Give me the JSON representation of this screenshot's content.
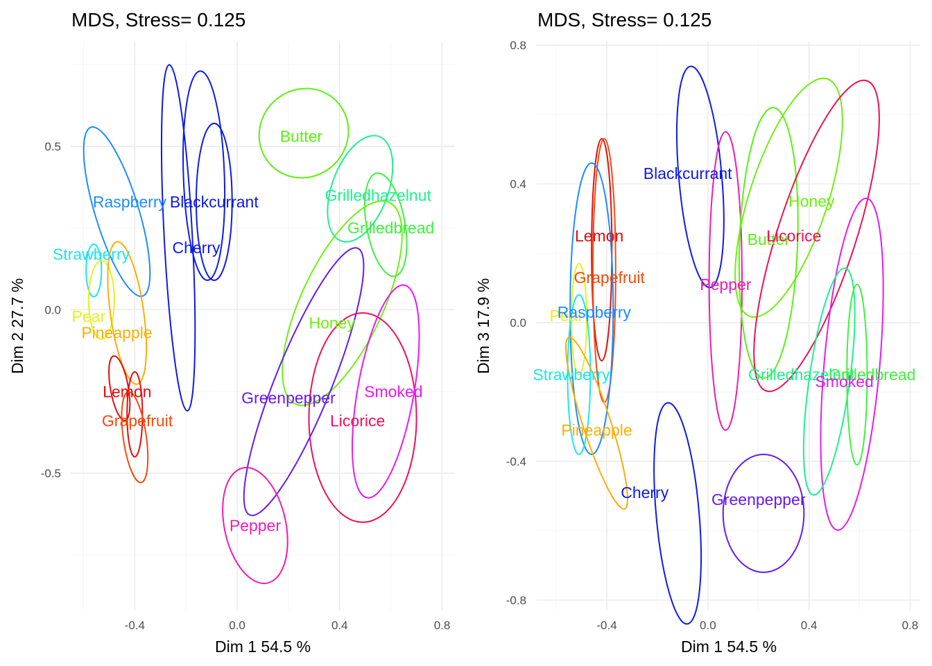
{
  "chart_data": [
    {
      "type": "scatter",
      "title": "MDS, Stress= 0.125",
      "xlabel": "Dim 1 54.5 %",
      "ylabel": "Dim 2 27.7 %",
      "xlim": [
        -0.65,
        0.85
      ],
      "ylim": [
        -0.92,
        0.82
      ],
      "xticks": [
        -0.4,
        0.0,
        0.4,
        0.8
      ],
      "xtick_labels": [
        "-0.4",
        "0.0",
        "0.4",
        "0.8"
      ],
      "yticks": [
        -0.5,
        0.0,
        0.5
      ],
      "ytick_labels": [
        "-0.5",
        "0.0",
        "0.5"
      ],
      "grid": true,
      "points": [
        {
          "label": "Raspberry",
          "x": -0.42,
          "y": 0.33,
          "color": "#1a8cff",
          "ellipse": {
            "cx": -0.47,
            "cy": 0.3,
            "rx": 0.085,
            "ry": 0.27,
            "angle": -17
          }
        },
        {
          "label": "Blackcurrant",
          "x": -0.09,
          "y": 0.33,
          "color": "#0d1ae6",
          "ellipse": {
            "cx": -0.13,
            "cy": 0.41,
            "rx": 0.08,
            "ry": 0.32,
            "angle": -2
          }
        },
        {
          "label": "Blackcurrant",
          "x": -0.09,
          "y": 0.33,
          "color": "#0d1ae6",
          "ellipse": {
            "cx": -0.09,
            "cy": 0.33,
            "rx": 0.07,
            "ry": 0.24,
            "angle": 0
          }
        },
        {
          "label": "Cherry",
          "x": -0.16,
          "y": 0.19,
          "color": "#0d1ae6",
          "ellipse": {
            "cx": -0.23,
            "cy": 0.22,
            "rx": 0.055,
            "ry": 0.53,
            "angle": -3
          }
        },
        {
          "label": "Strawberry",
          "x": -0.57,
          "y": 0.17,
          "color": "#19e6f2",
          "ellipse": {
            "cx": -0.56,
            "cy": 0.12,
            "rx": 0.03,
            "ry": 0.08,
            "angle": 0
          }
        },
        {
          "label": "Pear",
          "x": -0.58,
          "y": -0.02,
          "color": "#e6f21a",
          "ellipse": {
            "cx": -0.53,
            "cy": 0.03,
            "rx": 0.05,
            "ry": 0.12,
            "angle": 0
          }
        },
        {
          "label": "Pineapple",
          "x": -0.47,
          "y": -0.07,
          "color": "#ffad00",
          "ellipse": {
            "cx": -0.43,
            "cy": -0.01,
            "rx": 0.065,
            "ry": 0.22,
            "angle": -8
          }
        },
        {
          "label": "Lemon",
          "x": -0.43,
          "y": -0.25,
          "color": "#e60d0d",
          "ellipse": {
            "cx": -0.46,
            "cy": -0.24,
            "rx": 0.035,
            "ry": 0.1,
            "angle": -10
          }
        },
        {
          "label": "Lemon",
          "x": -0.43,
          "y": -0.25,
          "color": "#e60d0d",
          "ellipse": {
            "cx": -0.4,
            "cy": -0.32,
            "rx": 0.03,
            "ry": 0.13,
            "angle": 0
          }
        },
        {
          "label": "Grapefruit",
          "x": -0.39,
          "y": -0.34,
          "color": "#f24a0d",
          "ellipse": {
            "cx": -0.4,
            "cy": -0.39,
            "rx": 0.045,
            "ry": 0.14,
            "angle": -8
          }
        },
        {
          "label": "Butter",
          "x": 0.25,
          "y": 0.53,
          "color": "#59f20d",
          "ellipse": {
            "cx": 0.26,
            "cy": 0.54,
            "rx": 0.17,
            "ry": 0.14,
            "angle": 45
          }
        },
        {
          "label": "Grilledhazelnut",
          "x": 0.55,
          "y": 0.35,
          "color": "#19f28c",
          "ellipse": {
            "cx": 0.48,
            "cy": 0.37,
            "rx": 0.11,
            "ry": 0.17,
            "angle": 20
          }
        },
        {
          "label": "Grilledbread",
          "x": 0.6,
          "y": 0.25,
          "color": "#3df23d",
          "ellipse": {
            "cx": 0.58,
            "cy": 0.26,
            "rx": 0.075,
            "ry": 0.16,
            "angle": -10
          }
        },
        {
          "label": "Honey",
          "x": 0.37,
          "y": -0.04,
          "color": "#6bf20d",
          "ellipse": {
            "cx": 0.41,
            "cy": 0.02,
            "rx": 0.16,
            "ry": 0.34,
            "angle": 25
          }
        },
        {
          "label": "Greenpepper",
          "x": 0.2,
          "y": -0.27,
          "color": "#6619f2",
          "ellipse": {
            "cx": 0.26,
            "cy": -0.22,
            "rx": 0.11,
            "ry": 0.44,
            "angle": 22
          }
        },
        {
          "label": "Licorice",
          "x": 0.47,
          "y": -0.34,
          "color": "#f20d59",
          "ellipse": {
            "cx": 0.49,
            "cy": -0.33,
            "rx": 0.21,
            "ry": 0.32,
            "angle": 0
          }
        },
        {
          "label": "Smoked",
          "x": 0.61,
          "y": -0.25,
          "color": "#e619f2",
          "ellipse": {
            "cx": 0.58,
            "cy": -0.25,
            "rx": 0.11,
            "ry": 0.33,
            "angle": 10
          }
        },
        {
          "label": "Pepper",
          "x": 0.07,
          "y": -0.66,
          "color": "#f21ab3",
          "ellipse": {
            "cx": 0.07,
            "cy": -0.66,
            "rx": 0.12,
            "ry": 0.18,
            "angle": -12
          }
        }
      ],
      "label_points": [
        {
          "label": "Raspberry",
          "x": -0.42,
          "y": 0.33,
          "color": "#1a8cff"
        },
        {
          "label": "Blackcurrant",
          "x": -0.09,
          "y": 0.33,
          "color": "#0d1ae6"
        },
        {
          "label": "Cherry",
          "x": -0.16,
          "y": 0.19,
          "color": "#0d1ae6"
        },
        {
          "label": "Strawberry",
          "x": -0.57,
          "y": 0.17,
          "color": "#19e6f2"
        },
        {
          "label": "Pear",
          "x": -0.58,
          "y": -0.02,
          "color": "#e6f21a"
        },
        {
          "label": "Pineapple",
          "x": -0.47,
          "y": -0.07,
          "color": "#ffad00"
        },
        {
          "label": "Lemon",
          "x": -0.43,
          "y": -0.25,
          "color": "#e60d0d"
        },
        {
          "label": "Grapefruit",
          "x": -0.39,
          "y": -0.34,
          "color": "#f24a0d"
        },
        {
          "label": "Butter",
          "x": 0.25,
          "y": 0.53,
          "color": "#59f20d"
        },
        {
          "label": "Grilledhazelnut",
          "x": 0.55,
          "y": 0.35,
          "color": "#19f28c"
        },
        {
          "label": "Grilledbread",
          "x": 0.6,
          "y": 0.25,
          "color": "#3df23d"
        },
        {
          "label": "Honey",
          "x": 0.37,
          "y": -0.04,
          "color": "#6bf20d"
        },
        {
          "label": "Greenpepper",
          "x": 0.2,
          "y": -0.27,
          "color": "#6619f2"
        },
        {
          "label": "Licorice",
          "x": 0.47,
          "y": -0.34,
          "color": "#f20d59"
        },
        {
          "label": "Smoked",
          "x": 0.61,
          "y": -0.25,
          "color": "#e619f2"
        },
        {
          "label": "Pepper",
          "x": 0.07,
          "y": -0.66,
          "color": "#f21ab3"
        }
      ]
    },
    {
      "type": "scatter",
      "title": "MDS, Stress= 0.125",
      "xlabel": "Dim 1 54.5 %",
      "ylabel": "Dim 3 17.9 %",
      "xlim": [
        -0.68,
        0.84
      ],
      "ylim": [
        -0.83,
        0.81
      ],
      "xticks": [
        -0.4,
        0.0,
        0.4,
        0.8
      ],
      "xtick_labels": [
        "-0.4",
        "0.0",
        "0.4",
        "0.8"
      ],
      "yticks": [
        -0.8,
        -0.4,
        0.0,
        0.4,
        0.8
      ],
      "ytick_labels": [
        "-0.8",
        "-0.4",
        "0.0",
        "0.4",
        "0.8"
      ],
      "grid": true,
      "ellipses": [
        {
          "cx": -0.03,
          "cy": 0.42,
          "rx": 0.085,
          "ry": 0.32,
          "angle": -5,
          "color": "#0d1ae6"
        },
        {
          "cx": -0.12,
          "cy": -0.55,
          "rx": 0.085,
          "ry": 0.32,
          "angle": -5,
          "color": "#0d1ae6"
        },
        {
          "cx": 0.22,
          "cy": -0.55,
          "rx": 0.16,
          "ry": 0.17,
          "angle": 0,
          "color": "#6619f2"
        },
        {
          "cx": 0.07,
          "cy": 0.12,
          "rx": 0.065,
          "ry": 0.43,
          "angle": 0,
          "color": "#f21ab3"
        },
        {
          "cx": 0.32,
          "cy": 0.36,
          "rx": 0.155,
          "ry": 0.36,
          "angle": 18,
          "color": "#6bf20d"
        },
        {
          "cx": 0.24,
          "cy": 0.23,
          "rx": 0.115,
          "ry": 0.39,
          "angle": 2,
          "color": "#59f20d"
        },
        {
          "cx": 0.43,
          "cy": 0.25,
          "rx": 0.155,
          "ry": 0.47,
          "angle": 18,
          "color": "#f20d59"
        },
        {
          "cx": 0.57,
          "cy": -0.12,
          "rx": 0.11,
          "ry": 0.48,
          "angle": 5,
          "color": "#e619f2"
        },
        {
          "cx": 0.48,
          "cy": -0.17,
          "rx": 0.08,
          "ry": 0.33,
          "angle": 8,
          "color": "#19f28c"
        },
        {
          "cx": 0.59,
          "cy": -0.15,
          "rx": 0.04,
          "ry": 0.26,
          "angle": 0,
          "color": "#3df23d"
        },
        {
          "cx": -0.42,
          "cy": 0.21,
          "rx": 0.04,
          "ry": 0.32,
          "angle": 0,
          "color": "#e60d0d"
        },
        {
          "cx": -0.41,
          "cy": 0.15,
          "rx": 0.045,
          "ry": 0.38,
          "angle": 0,
          "color": "#f24a0d"
        },
        {
          "cx": -0.46,
          "cy": 0.04,
          "rx": 0.085,
          "ry": 0.42,
          "angle": 0,
          "color": "#1a8cff"
        },
        {
          "cx": -0.51,
          "cy": 0.01,
          "rx": 0.03,
          "ry": 0.16,
          "angle": 0,
          "color": "#e6f21a"
        },
        {
          "cx": -0.51,
          "cy": -0.15,
          "rx": 0.045,
          "ry": 0.23,
          "angle": 0,
          "color": "#19e6f2"
        },
        {
          "cx": -0.44,
          "cy": -0.29,
          "rx": 0.055,
          "ry": 0.26,
          "angle": -18,
          "color": "#ffad00"
        }
      ],
      "label_points": [
        {
          "label": "Blackcurrant",
          "x": -0.08,
          "y": 0.43,
          "color": "#0d1ae6"
        },
        {
          "label": "Honey",
          "x": 0.41,
          "y": 0.35,
          "color": "#6bf20d"
        },
        {
          "label": "Lemon",
          "x": -0.43,
          "y": 0.25,
          "color": "#e60d0d"
        },
        {
          "label": "Butter",
          "x": 0.24,
          "y": 0.24,
          "color": "#59f20d"
        },
        {
          "label": "Licorice",
          "x": 0.34,
          "y": 0.25,
          "color": "#f20d59"
        },
        {
          "label": "Grapefruit",
          "x": -0.39,
          "y": 0.13,
          "color": "#f24a0d"
        },
        {
          "label": "Pepper",
          "x": 0.07,
          "y": 0.11,
          "color": "#f21ab3"
        },
        {
          "label": "Pear",
          "x": -0.56,
          "y": 0.02,
          "color": "#e6f21a"
        },
        {
          "label": "Raspberry",
          "x": -0.45,
          "y": 0.03,
          "color": "#1a8cff"
        },
        {
          "label": "Strawberry",
          "x": -0.54,
          "y": -0.15,
          "color": "#19e6f2"
        },
        {
          "label": "Grilledhazelnut",
          "x": 0.37,
          "y": -0.15,
          "color": "#19f28c"
        },
        {
          "label": "Grilledbread",
          "x": 0.65,
          "y": -0.15,
          "color": "#3df23d"
        },
        {
          "label": "Smoked",
          "x": 0.54,
          "y": -0.17,
          "color": "#e619f2"
        },
        {
          "label": "Pineapple",
          "x": -0.44,
          "y": -0.31,
          "color": "#ffad00"
        },
        {
          "label": "Cherry",
          "x": -0.25,
          "y": -0.49,
          "color": "#0d1ae6"
        },
        {
          "label": "Greenpepper",
          "x": 0.2,
          "y": -0.51,
          "color": "#6619f2"
        }
      ]
    }
  ]
}
